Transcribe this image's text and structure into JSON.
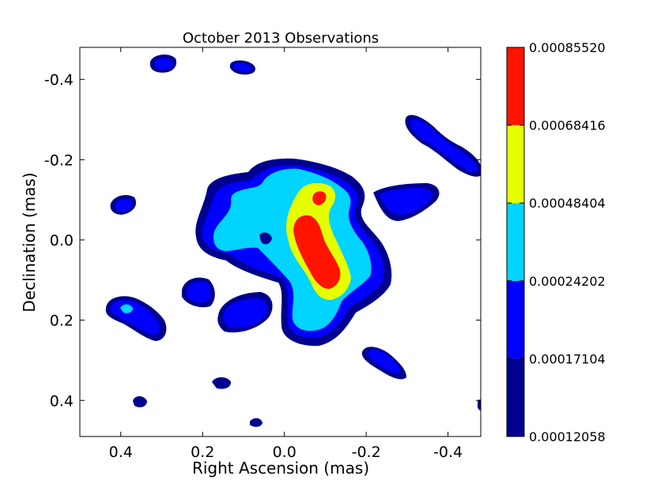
{
  "chart_data": {
    "type": "contour",
    "title": "October 2013 Observations",
    "xlabel": "Right Ascension (mas)",
    "ylabel": "Declination (mas)",
    "xlim": [
      0.5,
      -0.48
    ],
    "ylim": [
      -0.48,
      0.49
    ],
    "x_ticks": [
      0.4,
      0.2,
      0.0,
      -0.2,
      -0.4
    ],
    "x_tick_labels": [
      "0.4",
      "0.2",
      "0.0",
      "-0.2",
      "-0.4"
    ],
    "y_ticks": [
      -0.4,
      -0.2,
      0.0,
      0.2,
      0.4
    ],
    "y_tick_labels": [
      "-0.4",
      "-0.2",
      "0.0",
      "0.2",
      "0.4"
    ],
    "grid": false,
    "colorbar": {
      "placement": "right",
      "levels": [
        "0.00012058",
        "0.00017104",
        "0.00024202",
        "0.00048404",
        "0.00068416",
        "0.00085520"
      ],
      "colors": [
        "#00008f",
        "#0000ff",
        "#00d4ff",
        "#e6ff00",
        "#ff1400"
      ]
    },
    "colors": {
      "level1": "#00008f",
      "level2": "#0000ff",
      "level3": "#00d4ff",
      "level4": "#e6ff00",
      "level5": "#ff1400"
    }
  }
}
